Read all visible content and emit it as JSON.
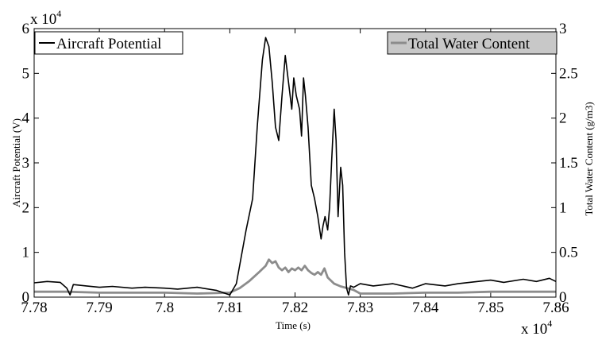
{
  "chart_data": {
    "type": "line",
    "xlabel": "Time (s)",
    "ylabel_left": "Aircraft Potential (V)",
    "ylabel_right": "Total Water Content (g/m3)",
    "x_multiplier": {
      "base": "x 10",
      "exponent": "4"
    },
    "y_left_multiplier": {
      "base": "x 10",
      "exponent": "4"
    },
    "xlim": [
      7.78,
      7.86
    ],
    "ylim_left": [
      0,
      6
    ],
    "ylim_right": [
      0,
      3
    ],
    "x_ticks": [
      "7.78",
      "7.79",
      "7.8",
      "7.81",
      "7.82",
      "7.83",
      "7.84",
      "7.85",
      "7.86"
    ],
    "y_left_ticks": [
      "0",
      "1",
      "2",
      "3",
      "4",
      "5",
      "6"
    ],
    "y_right_ticks": [
      "0",
      "0.5",
      "1",
      "1.5",
      "2",
      "2.5",
      "3"
    ],
    "legend": {
      "left": "Aircraft Potential",
      "right": "Total Water Content"
    },
    "colors": {
      "potential": "#000000",
      "water": "#8c8c8c"
    },
    "series": [
      {
        "name": "Aircraft Potential",
        "axis": "left",
        "x": [
          7.78,
          7.782,
          7.784,
          7.785,
          7.7855,
          7.786,
          7.788,
          7.79,
          7.792,
          7.795,
          7.797,
          7.8,
          7.802,
          7.805,
          7.808,
          7.81,
          7.811,
          7.8125,
          7.8135,
          7.8142,
          7.815,
          7.8155,
          7.816,
          7.8165,
          7.817,
          7.8175,
          7.818,
          7.8185,
          7.819,
          7.8195,
          7.8198,
          7.8202,
          7.8207,
          7.821,
          7.8213,
          7.8216,
          7.822,
          7.8225,
          7.823,
          7.8235,
          7.824,
          7.8243,
          7.8246,
          7.825,
          7.8253,
          7.8256,
          7.826,
          7.8263,
          7.8266,
          7.827,
          7.8273,
          7.8276,
          7.8279,
          7.8282,
          7.8285,
          7.829,
          7.83,
          7.832,
          7.835,
          7.838,
          7.84,
          7.843,
          7.845,
          7.848,
          7.85,
          7.852,
          7.855,
          7.857,
          7.859,
          7.86
        ],
        "y": [
          0.32,
          0.35,
          0.33,
          0.2,
          0.05,
          0.28,
          0.25,
          0.22,
          0.24,
          0.2,
          0.22,
          0.2,
          0.18,
          0.22,
          0.15,
          0.05,
          0.3,
          1.5,
          2.2,
          3.8,
          5.3,
          5.8,
          5.6,
          4.8,
          3.8,
          3.5,
          4.5,
          5.4,
          4.8,
          4.2,
          4.9,
          4.5,
          4.2,
          3.6,
          4.9,
          4.5,
          3.8,
          2.5,
          2.2,
          1.8,
          1.3,
          1.6,
          1.8,
          1.5,
          2.0,
          3.0,
          4.2,
          3.5,
          1.8,
          2.9,
          2.5,
          1.0,
          0.2,
          0.05,
          0.25,
          0.22,
          0.3,
          0.25,
          0.3,
          0.2,
          0.3,
          0.25,
          0.3,
          0.35,
          0.38,
          0.33,
          0.4,
          0.35,
          0.42,
          0.35
        ]
      },
      {
        "name": "Total Water Content",
        "axis": "right",
        "x": [
          7.78,
          7.785,
          7.79,
          7.795,
          7.8,
          7.805,
          7.81,
          7.8115,
          7.813,
          7.8145,
          7.8155,
          7.816,
          7.8165,
          7.817,
          7.8175,
          7.818,
          7.8185,
          7.819,
          7.8195,
          7.82,
          7.8205,
          7.821,
          7.8215,
          7.822,
          7.8225,
          7.823,
          7.8235,
          7.824,
          7.8245,
          7.825,
          7.826,
          7.827,
          7.828,
          7.829,
          7.83,
          7.835,
          7.84,
          7.845,
          7.85,
          7.855,
          7.86
        ],
        "y": [
          0.06,
          0.06,
          0.05,
          0.05,
          0.05,
          0.04,
          0.05,
          0.1,
          0.18,
          0.28,
          0.35,
          0.42,
          0.38,
          0.4,
          0.33,
          0.3,
          0.33,
          0.28,
          0.32,
          0.3,
          0.33,
          0.3,
          0.35,
          0.3,
          0.27,
          0.25,
          0.28,
          0.25,
          0.32,
          0.22,
          0.15,
          0.12,
          0.1,
          0.08,
          0.04,
          0.04,
          0.05,
          0.05,
          0.06,
          0.06,
          0.06
        ]
      }
    ]
  }
}
